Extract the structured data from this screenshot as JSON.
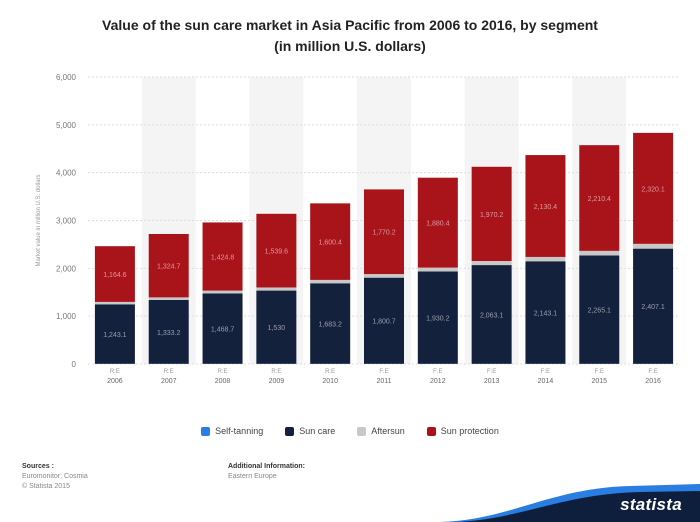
{
  "title_line1": "Value of the sun care market in Asia Pacific from 2006 to 2016, by segment",
  "title_line2": "(in million U.S. dollars)",
  "sources": {
    "heading": "Sources :",
    "line1": "Euromonitor; Cosmia",
    "line2": "© Statista 2015"
  },
  "additional": {
    "heading": "Additional Information:",
    "line1": "Eastern Europe"
  },
  "brand": "statista",
  "colors": {
    "self_tanning": "#2a7de1",
    "sun_care": "#14213d",
    "aftersun": "#c8c8c8",
    "sun_protection": "#a9141b",
    "brand_bar": "#0e1f3d",
    "brand_accent": "#2a7de1"
  },
  "chart_data": {
    "type": "bar",
    "stacked": true,
    "ylabel": "Market value in million U.S. dollars",
    "ylim": [
      0,
      6000
    ],
    "yticks": [
      "0",
      "1,000",
      "2,000",
      "3,000",
      "4,000",
      "5,000",
      "6,000"
    ],
    "grid": true,
    "legend_position": "bottom",
    "categories": [
      "2006",
      "2007",
      "2008",
      "2009",
      "2010",
      "2011",
      "2012",
      "2013",
      "2014",
      "2015",
      "2016"
    ],
    "tick_category_labels": [
      "R:E",
      "R:E",
      "R:E",
      "R:E",
      "R:E",
      "F:E",
      "F:E",
      "F:E",
      "F:E",
      "F:E",
      "F:E"
    ],
    "series": [
      {
        "name": "Self-tanning",
        "values": [
          5,
          5,
          5,
          5,
          5,
          5,
          5,
          5,
          5,
          5,
          5
        ]
      },
      {
        "name": "Sun care",
        "values": [
          1243,
          1333,
          1469,
          1530,
          1683,
          1800,
          1930,
          2063,
          2143,
          2265,
          2407
        ]
      },
      {
        "name": "Aftersun",
        "values": [
          50,
          55,
          60,
          65,
          70,
          75,
          80,
          85,
          90,
          95,
          100
        ]
      },
      {
        "name": "Sun protection",
        "values": [
          1165,
          1325,
          1425,
          1540,
          1600,
          1770,
          1880,
          1970,
          2130,
          2210,
          2320
        ]
      }
    ],
    "data_labels": {
      "Sun care": [
        "1,243.1",
        "1,333.2",
        "1,468.7",
        "1,530",
        "1,683.2",
        "1,800.7",
        "1,930.2",
        "2,063.1",
        "2,143.1",
        "2,265.1",
        "2,407.1"
      ],
      "Sun protection": [
        "1,164.6",
        "1,324.7",
        "1,424.8",
        "1,539.6",
        "1,600.4",
        "1,770.2",
        "1,880.4",
        "1,970.2",
        "2,130.4",
        "2,210.4",
        "2,320.1"
      ]
    }
  }
}
